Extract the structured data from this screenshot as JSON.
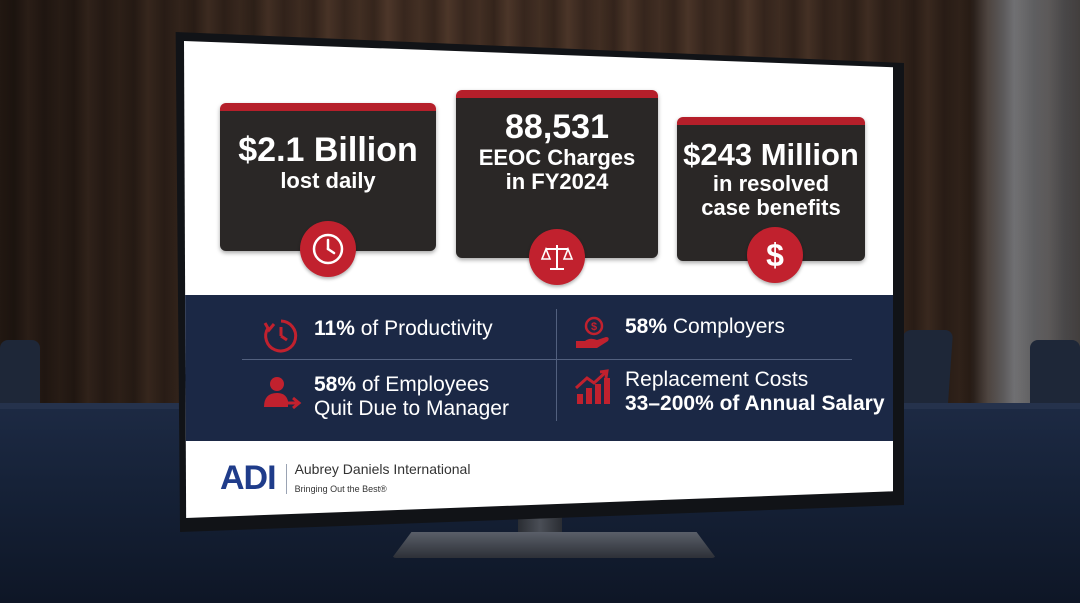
{
  "cards": [
    {
      "value": "$2.1 Billion",
      "caption_line1": "lost daily",
      "caption_line2": "",
      "icon": "clock-icon"
    },
    {
      "value": "88,531",
      "caption_line1": "EEOC Charges",
      "caption_line2": "in FY2024",
      "icon": "scales-icon"
    },
    {
      "value": "$243 Million",
      "caption_line1": "in resolved",
      "caption_line2": "case benefits",
      "icon": "dollar-icon"
    }
  ],
  "dollar_symbol": "$",
  "stats": [
    {
      "highlight": "11%",
      "text": "of Productivity",
      "icon": "clock-arrow-icon"
    },
    {
      "highlight": "58%",
      "text": "Comployers",
      "icon": "hand-coin-icon"
    },
    {
      "highlight": "58%",
      "text": "of Employees",
      "text_line2": "Quit Due to Manager",
      "icon": "person-exit-icon"
    },
    {
      "highlight": "",
      "text": "Replacement Costs",
      "text_line2": "33–200% of Annual Salary",
      "icon": "bar-chart-up-icon"
    }
  ],
  "footer": {
    "logo_mark": "ADI",
    "company": "Aubrey Daniels International",
    "tagline": "Bringing Out the Best®"
  },
  "colors": {
    "accent_red": "#c1212e",
    "navy": "#1b2845",
    "card_dark": "#2a2726",
    "brand_blue": "#1f3c8a"
  }
}
